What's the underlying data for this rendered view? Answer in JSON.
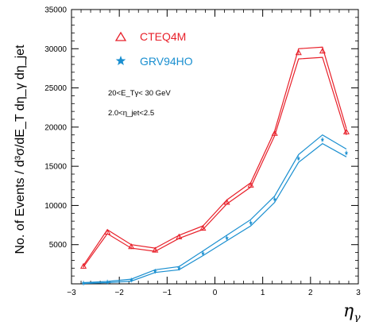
{
  "chart_data": {
    "type": "line",
    "xlabel": "η",
    "xlabel_sub": "γ",
    "ylabel": "No. of Events / d³σ/dE_T dη_γ dη_jet",
    "xlim": [
      -3,
      3
    ],
    "ylim": [
      0,
      35000
    ],
    "x_ticks": [
      -3,
      -2,
      -1,
      0,
      1,
      2,
      3
    ],
    "y_ticks": [
      5000,
      10000,
      15000,
      20000,
      25000,
      30000,
      35000
    ],
    "grid": false,
    "annotations": [
      "20<E_Tγ< 30 GeV",
      "2.0<η_jet<2.5"
    ],
    "x": [
      -2.75,
      -2.25,
      -1.75,
      -1.25,
      -0.75,
      -0.25,
      0.25,
      0.75,
      1.25,
      1.75,
      2.25,
      2.75
    ],
    "series": [
      {
        "name": "CTEQ4M",
        "color": "#e8202a",
        "marker": "triangle-open",
        "upper": [
          2350,
          6900,
          5000,
          4550,
          6200,
          7400,
          10700,
          12900,
          19500,
          30000,
          30200,
          19800
        ],
        "lower": [
          2150,
          6400,
          4550,
          4150,
          5800,
          6950,
          10200,
          12350,
          18900,
          28700,
          28900,
          19000
        ],
        "values": [
          2250,
          6600,
          4750,
          4300,
          6000,
          7100,
          10400,
          12600,
          19200,
          29500,
          29700,
          19400
        ]
      },
      {
        "name": "GRV94HO",
        "color": "#1a8fd0",
        "marker": "star",
        "upper": [
          150,
          300,
          600,
          1800,
          2200,
          4200,
          6200,
          8200,
          11200,
          16500,
          19000,
          17200
        ],
        "lower": [
          50,
          150,
          350,
          1450,
          1800,
          3600,
          5500,
          7400,
          10400,
          15500,
          17900,
          16200
        ],
        "values": [
          100,
          230,
          480,
          1600,
          2000,
          3900,
          5850,
          7800,
          10800,
          16000,
          18400,
          16700
        ]
      }
    ]
  }
}
